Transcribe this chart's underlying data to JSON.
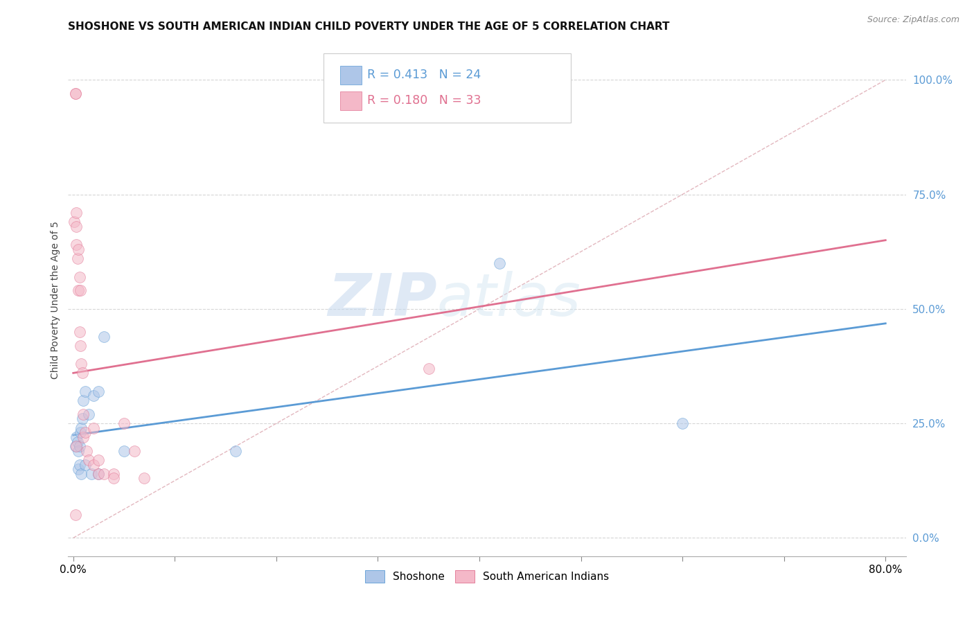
{
  "title": "SHOSHONE VS SOUTH AMERICAN INDIAN CHILD POVERTY UNDER THE AGE OF 5 CORRELATION CHART",
  "source": "Source: ZipAtlas.com",
  "ylabel": "Child Poverty Under the Age of 5",
  "ytick_labels": [
    "0.0%",
    "25.0%",
    "50.0%",
    "75.0%",
    "100.0%"
  ],
  "ytick_values": [
    0.0,
    0.25,
    0.5,
    0.75,
    1.0
  ],
  "xlim": [
    -0.005,
    0.82
  ],
  "ylim": [
    -0.04,
    1.08
  ],
  "watermark_zip": "ZIP",
  "watermark_atlas": "atlas",
  "legend_label_1": "Shoshone",
  "legend_label_2": "South American Indians",
  "r1": 0.413,
  "n1": 24,
  "r2": 0.18,
  "n2": 33,
  "shoshone_color": "#aec6e8",
  "sai_color": "#f4b8c8",
  "shoshone_line_color": "#5b9bd5",
  "sai_line_color": "#e07090",
  "ref_line_color": "#e0b0b8",
  "shoshone_x": [
    0.002,
    0.003,
    0.004,
    0.005,
    0.006,
    0.007,
    0.008,
    0.009,
    0.01,
    0.012,
    0.015,
    0.02,
    0.025,
    0.03,
    0.05,
    0.16,
    0.42,
    0.6,
    0.005,
    0.006,
    0.008,
    0.012,
    0.018,
    0.025
  ],
  "shoshone_y": [
    0.2,
    0.22,
    0.21,
    0.19,
    0.2,
    0.23,
    0.24,
    0.26,
    0.3,
    0.32,
    0.27,
    0.31,
    0.32,
    0.44,
    0.19,
    0.19,
    0.6,
    0.25,
    0.15,
    0.16,
    0.14,
    0.16,
    0.14,
    0.14
  ],
  "sai_x": [
    0.001,
    0.002,
    0.002,
    0.003,
    0.003,
    0.003,
    0.004,
    0.005,
    0.005,
    0.006,
    0.006,
    0.007,
    0.007,
    0.008,
    0.009,
    0.01,
    0.01,
    0.012,
    0.013,
    0.015,
    0.02,
    0.02,
    0.025,
    0.025,
    0.03,
    0.04,
    0.04,
    0.05,
    0.06,
    0.07,
    0.35,
    0.002,
    0.003
  ],
  "sai_y": [
    0.69,
    0.97,
    0.97,
    0.68,
    0.64,
    0.71,
    0.61,
    0.63,
    0.54,
    0.57,
    0.45,
    0.54,
    0.42,
    0.38,
    0.36,
    0.27,
    0.22,
    0.23,
    0.19,
    0.17,
    0.16,
    0.24,
    0.17,
    0.14,
    0.14,
    0.14,
    0.13,
    0.25,
    0.19,
    0.13,
    0.37,
    0.05,
    0.2
  ],
  "scatter_size": 130,
  "scatter_alpha": 0.55,
  "grid_color": "#cccccc",
  "grid_alpha": 0.8,
  "background_color": "#ffffff",
  "title_fontsize": 11,
  "axis_label_fontsize": 10,
  "tick_fontsize": 11,
  "source_fontsize": 9
}
